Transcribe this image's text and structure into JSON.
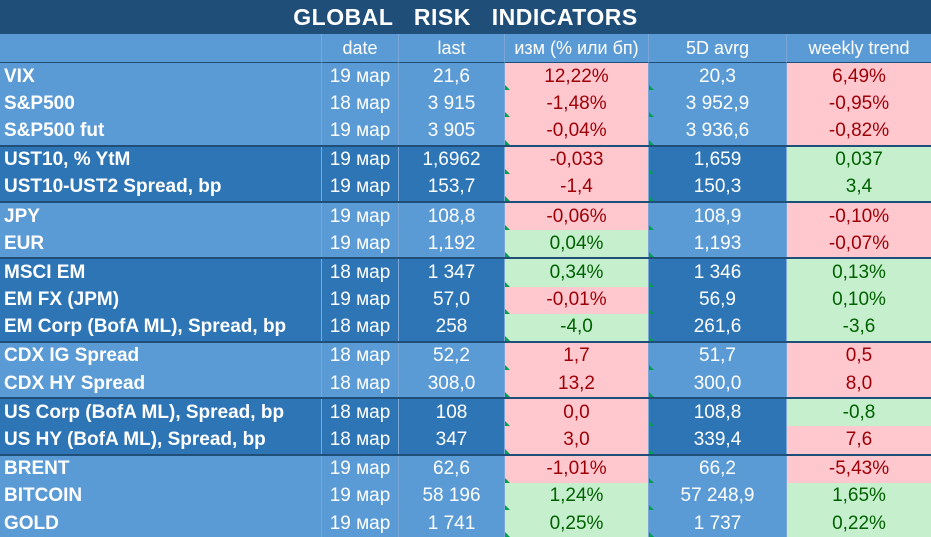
{
  "title": "GLOBAL   RISK   INDICATORS",
  "headers": {
    "name": "",
    "date": "date",
    "last": "last",
    "change": "изм (% или бп)",
    "avg5d": "5D avrg",
    "weekly": "weekly trend"
  },
  "rows": [
    {
      "name": "VIX",
      "date": "19 мар",
      "last": "21,6",
      "change": "12,22%",
      "change_dir": "neg",
      "avg5d": "20,3",
      "weekly": "6,49%",
      "weekly_dir": "neg",
      "group": "g1"
    },
    {
      "name": "S&P500",
      "date": "18 мар",
      "last": "3 915",
      "change": "-1,48%",
      "change_dir": "neg",
      "avg5d": "3 952,9",
      "weekly": "-0,95%",
      "weekly_dir": "neg",
      "group": "g1"
    },
    {
      "name": "S&P500 fut",
      "date": "19 мар",
      "last": "3 905",
      "change": "-0,04%",
      "change_dir": "neg",
      "avg5d": "3 936,6",
      "weekly": "-0,82%",
      "weekly_dir": "neg",
      "group": "g1"
    },
    {
      "name": "UST10, % YtM",
      "date": "19 мар",
      "last": "1,6962",
      "change": "-0,033",
      "change_dir": "neg",
      "avg5d": "1,659",
      "weekly": "0,037",
      "weekly_dir": "pos",
      "group": "g2"
    },
    {
      "name": "UST10-UST2 Spread, bp",
      "date": "19 мар",
      "last": "153,7",
      "change": "-1,4",
      "change_dir": "neg",
      "avg5d": "150,3",
      "weekly": "3,4",
      "weekly_dir": "pos",
      "group": "g2"
    },
    {
      "name": "JPY",
      "date": "19 мар",
      "last": "108,8",
      "change": "-0,06%",
      "change_dir": "neg",
      "avg5d": "108,9",
      "weekly": "-0,10%",
      "weekly_dir": "neg",
      "group": "g1"
    },
    {
      "name": "EUR",
      "date": "19 мар",
      "last": "1,192",
      "change": "0,04%",
      "change_dir": "pos",
      "avg5d": "1,193",
      "weekly": "-0,07%",
      "weekly_dir": "neg",
      "group": "g1"
    },
    {
      "name": "MSCI EM",
      "date": "18 мар",
      "last": "1 347",
      "change": "0,34%",
      "change_dir": "pos",
      "avg5d": "1 346",
      "weekly": "0,13%",
      "weekly_dir": "pos",
      "group": "g2"
    },
    {
      "name": "EM FX (JPM)",
      "date": "19 мар",
      "last": "57,0",
      "change": "-0,01%",
      "change_dir": "neg",
      "avg5d": "56,9",
      "weekly": "0,10%",
      "weekly_dir": "pos",
      "group": "g2"
    },
    {
      "name": "EM Corp (BofA ML), Spread, bp",
      "date": "18 мар",
      "last": "258",
      "change": "-4,0",
      "change_dir": "pos",
      "avg5d": "261,6",
      "weekly": "-3,6",
      "weekly_dir": "pos",
      "group": "g2"
    },
    {
      "name": "CDX IG Spread",
      "date": "18 мар",
      "last": "52,2",
      "change": "1,7",
      "change_dir": "neg",
      "avg5d": "51,7",
      "weekly": "0,5",
      "weekly_dir": "neg",
      "group": "g1"
    },
    {
      "name": "CDX HY Spread",
      "date": "18 мар",
      "last": "308,0",
      "change": "13,2",
      "change_dir": "neg",
      "avg5d": "300,0",
      "weekly": "8,0",
      "weekly_dir": "neg",
      "group": "g1"
    },
    {
      "name": "US Corp (BofA ML), Spread, bp",
      "date": "18 мар",
      "last": "108",
      "change": "0,0",
      "change_dir": "neg",
      "avg5d": "108,8",
      "weekly": "-0,8",
      "weekly_dir": "pos",
      "group": "g2"
    },
    {
      "name": "US HY (BofA ML), Spread, bp",
      "date": "18 мар",
      "last": "347",
      "change": "3,0",
      "change_dir": "neg",
      "avg5d": "339,4",
      "weekly": "7,6",
      "weekly_dir": "neg",
      "group": "g2"
    },
    {
      "name": "BRENT",
      "date": "19 мар",
      "last": "62,6",
      "change": "-1,01%",
      "change_dir": "neg",
      "avg5d": "66,2",
      "weekly": "-5,43%",
      "weekly_dir": "neg",
      "group": "g1"
    },
    {
      "name": "BITCOIN",
      "date": "19 мар",
      "last": "58 196",
      "change": "1,24%",
      "change_dir": "pos",
      "avg5d": "57 248,9",
      "weekly": "1,65%",
      "weekly_dir": "pos",
      "group": "g1"
    },
    {
      "name": "GOLD",
      "date": "19 мар",
      "last": "1 741",
      "change": "0,25%",
      "change_dir": "pos",
      "avg5d": "1 737",
      "weekly": "0,22%",
      "weekly_dir": "pos",
      "group": "g1"
    }
  ],
  "colors": {
    "title_bg": "#1f4e79",
    "light_blue": "#5b9bd5",
    "dark_blue": "#2e75b6",
    "positive_bg": "#c6efce",
    "positive_text": "#006100",
    "negative_bg": "#ffc7ce",
    "negative_text": "#9c0006"
  }
}
